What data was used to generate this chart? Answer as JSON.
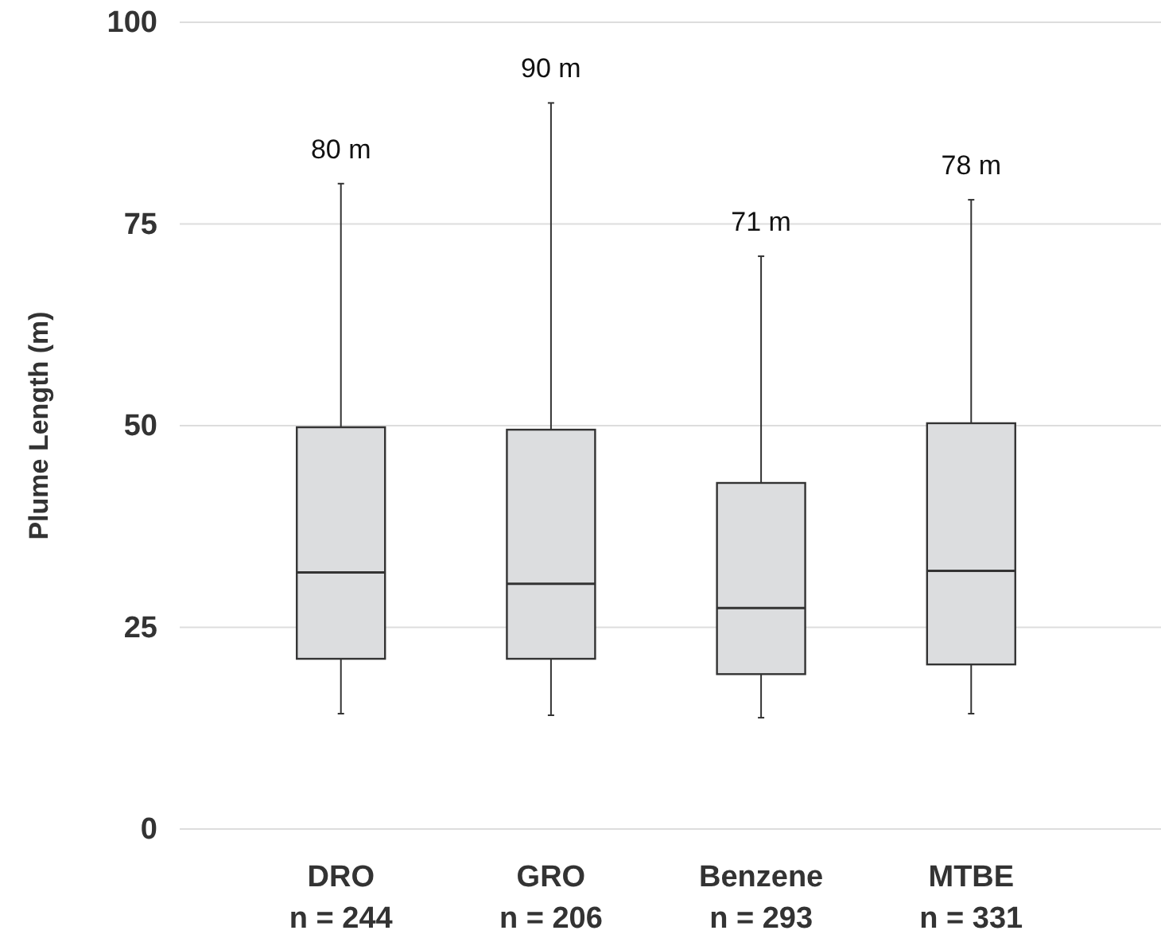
{
  "chart_data": {
    "type": "box",
    "ylabel": "Plume Length (m)",
    "categories": [
      "DRO\nn = 244",
      "GRO\nn = 206",
      "Benzene\nn = 293",
      "MTBE\nn = 331"
    ],
    "boxes": [
      {
        "low": 14.3,
        "q1": 21.1,
        "median": 31.8,
        "q3": 49.8,
        "high": 80
      },
      {
        "low": 14.1,
        "q1": 21.1,
        "median": 30.4,
        "q3": 49.5,
        "high": 90
      },
      {
        "low": 13.8,
        "q1": 19.2,
        "median": 27.4,
        "q3": 42.9,
        "high": 71
      },
      {
        "low": 14.3,
        "q1": 20.4,
        "median": 32.0,
        "q3": 50.3,
        "high": 78
      }
    ],
    "color": "#dcdddf",
    "ylim": [
      0,
      100
    ],
    "yticks": [
      0,
      25,
      50,
      75,
      100
    ],
    "grid": "y",
    "annotations": [
      {
        "text": "80 m",
        "x": "DRO\nn = 244",
        "y": 80
      },
      {
        "text": "90 m",
        "x": "GRO\nn = 206",
        "y": 90
      },
      {
        "text": "71 m",
        "x": "Benzene\nn = 293",
        "y": 71
      },
      {
        "text": "78 m",
        "x": "MTBE\nn = 331",
        "y": 78
      }
    ]
  }
}
